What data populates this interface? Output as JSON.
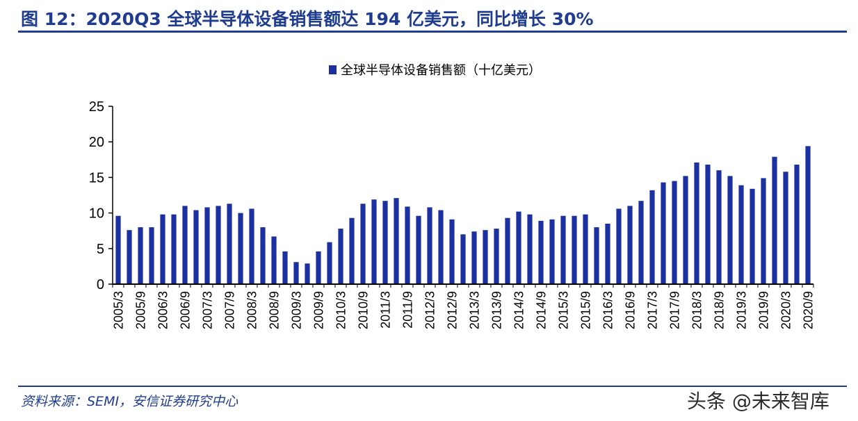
{
  "header": {
    "title": "图 12：2020Q3 全球半导体设备销售额达 194 亿美元，同比增长 30%"
  },
  "footer": {
    "source": "资料来源：SEMI，安信证券研究中心",
    "watermark": "头条 @未来智库"
  },
  "colors": {
    "bar": "#1c30a0",
    "rule": "#1f3c8f"
  },
  "chart_data": {
    "type": "bar",
    "legend_position": "top-center",
    "grid": false,
    "ylim": [
      0,
      25
    ],
    "yticks": [
      0,
      5,
      10,
      15,
      20,
      25
    ],
    "series": [
      {
        "name": "全球半导体设备销售额（十亿美元）",
        "values": [
          9.6,
          7.6,
          8.0,
          8.0,
          9.8,
          9.8,
          11.0,
          10.4,
          10.8,
          11.0,
          11.3,
          10.0,
          10.6,
          8.0,
          6.7,
          4.6,
          3.1,
          2.9,
          4.6,
          5.9,
          7.8,
          9.3,
          11.3,
          11.9,
          11.7,
          12.1,
          10.9,
          9.6,
          10.8,
          10.4,
          9.1,
          7.0,
          7.4,
          7.6,
          7.8,
          9.3,
          10.2,
          9.8,
          8.9,
          9.1,
          9.6,
          9.6,
          9.8,
          8.0,
          8.5,
          10.6,
          11.0,
          11.7,
          13.2,
          14.3,
          14.5,
          15.2,
          17.1,
          16.8,
          16.0,
          15.2,
          13.9,
          13.4,
          14.9,
          17.9,
          15.8,
          16.8,
          19.4
        ]
      }
    ],
    "x": [
      "2005/3",
      "2005/6",
      "2005/9",
      "2005/12",
      "2006/3",
      "2006/6",
      "2006/9",
      "2006/12",
      "2007/3",
      "2007/6",
      "2007/9",
      "2007/12",
      "2008/3",
      "2008/6",
      "2008/9",
      "2008/12",
      "2009/3",
      "2009/6",
      "2009/9",
      "2009/12",
      "2010/3",
      "2010/6",
      "2010/9",
      "2010/12",
      "2011/3",
      "2011/6",
      "2011/9",
      "2011/12",
      "2012/3",
      "2012/6",
      "2012/9",
      "2012/12",
      "2013/3",
      "2013/6",
      "2013/9",
      "2013/12",
      "2014/3",
      "2014/6",
      "2014/9",
      "2014/12",
      "2015/3",
      "2015/6",
      "2015/9",
      "2015/12",
      "2016/3",
      "2016/6",
      "2016/9",
      "2016/12",
      "2017/3",
      "2017/6",
      "2017/9",
      "2017/12",
      "2018/3",
      "2018/6",
      "2018/9",
      "2018/12",
      "2019/3",
      "2019/6",
      "2019/9",
      "2019/12",
      "2020/3",
      "2020/6",
      "2020/9"
    ],
    "xtick_labels": [
      "2005/3",
      "2005/9",
      "2006/3",
      "2006/9",
      "2007/3",
      "2007/9",
      "2008/3",
      "2008/9",
      "2009/3",
      "2009/9",
      "2010/3",
      "2010/9",
      "2011/3",
      "2011/9",
      "2012/3",
      "2012/9",
      "2013/3",
      "2013/9",
      "2014/3",
      "2014/9",
      "2015/3",
      "2015/9",
      "2016/3",
      "2016/9",
      "2017/3",
      "2017/9",
      "2018/3",
      "2018/9",
      "2019/3",
      "2019/9",
      "2020/3",
      "2020/9"
    ]
  }
}
